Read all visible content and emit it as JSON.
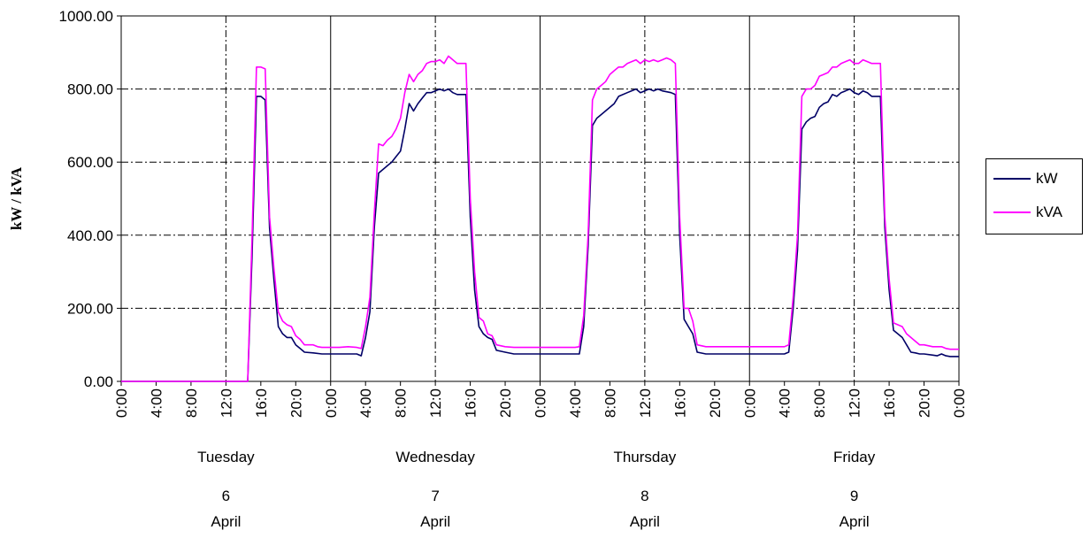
{
  "chart_data": {
    "type": "line",
    "title": "",
    "ylabel": "kW / kVA",
    "ylim": [
      0,
      1000
    ],
    "yticks": [
      "0.00",
      "200.00",
      "400.00",
      "600.00",
      "800.00",
      "1000.00"
    ],
    "xlim": [
      0,
      96
    ],
    "x_tick_labels": [
      "0:00",
      "4:00",
      "8:00",
      "12:0",
      "16:0",
      "20:0",
      "0:00",
      "4:00",
      "8:00",
      "12:0",
      "16:0",
      "20:0",
      "0:00",
      "4:00",
      "8:00",
      "12:0",
      "16:0",
      "20:0",
      "0:00",
      "4:00",
      "8:00",
      "12:0",
      "16:0",
      "20:0",
      "0:00"
    ],
    "days": [
      {
        "name": "Tuesday",
        "day": "6",
        "month": "April"
      },
      {
        "name": "Wednesday",
        "day": "7",
        "month": "April"
      },
      {
        "name": "Thursday",
        "day": "8",
        "month": "April"
      },
      {
        "name": "Friday",
        "day": "9",
        "month": "April"
      }
    ],
    "grid": true,
    "legend_position": "right",
    "series": [
      {
        "name": "kW",
        "color": "#000066",
        "points": [
          [
            0,
            0
          ],
          [
            14,
            0
          ],
          [
            14.5,
            0
          ],
          [
            15,
            350
          ],
          [
            15.5,
            780
          ],
          [
            16,
            780
          ],
          [
            16.5,
            770
          ],
          [
            17,
            420
          ],
          [
            17.5,
            280
          ],
          [
            18,
            150
          ],
          [
            18.5,
            130
          ],
          [
            19,
            120
          ],
          [
            19.5,
            120
          ],
          [
            20,
            100
          ],
          [
            20.5,
            90
          ],
          [
            21,
            80
          ],
          [
            22,
            78
          ],
          [
            23,
            75
          ],
          [
            24,
            75
          ],
          [
            26,
            75
          ],
          [
            27,
            75
          ],
          [
            27.5,
            70
          ],
          [
            28,
            120
          ],
          [
            28.5,
            190
          ],
          [
            29,
            420
          ],
          [
            29.5,
            570
          ],
          [
            30,
            580
          ],
          [
            30.5,
            590
          ],
          [
            31,
            600
          ],
          [
            31.5,
            615
          ],
          [
            32,
            630
          ],
          [
            32.5,
            690
          ],
          [
            33,
            760
          ],
          [
            33.5,
            740
          ],
          [
            34,
            760
          ],
          [
            34.5,
            775
          ],
          [
            35,
            790
          ],
          [
            35.5,
            790
          ],
          [
            36,
            795
          ],
          [
            36.5,
            800
          ],
          [
            37,
            795
          ],
          [
            37.5,
            800
          ],
          [
            38,
            790
          ],
          [
            38.5,
            785
          ],
          [
            39,
            785
          ],
          [
            39.5,
            785
          ],
          [
            40,
            450
          ],
          [
            40.5,
            250
          ],
          [
            41,
            150
          ],
          [
            41.5,
            130
          ],
          [
            42,
            120
          ],
          [
            42.5,
            115
          ],
          [
            43,
            85
          ],
          [
            44,
            80
          ],
          [
            45,
            75
          ],
          [
            48,
            75
          ],
          [
            50,
            75
          ],
          [
            52,
            75
          ],
          [
            52.5,
            75
          ],
          [
            53,
            150
          ],
          [
            53.5,
            370
          ],
          [
            54,
            700
          ],
          [
            54.5,
            720
          ],
          [
            55,
            730
          ],
          [
            55.5,
            740
          ],
          [
            56,
            750
          ],
          [
            56.5,
            760
          ],
          [
            57,
            780
          ],
          [
            58,
            790
          ],
          [
            59,
            800
          ],
          [
            59.5,
            790
          ],
          [
            60,
            795
          ],
          [
            60.5,
            800
          ],
          [
            61,
            795
          ],
          [
            61.5,
            800
          ],
          [
            62,
            795
          ],
          [
            63,
            790
          ],
          [
            63.5,
            785
          ],
          [
            64,
            400
          ],
          [
            64.5,
            170
          ],
          [
            65,
            150
          ],
          [
            65.5,
            130
          ],
          [
            66,
            80
          ],
          [
            67,
            75
          ],
          [
            72,
            75
          ],
          [
            76,
            75
          ],
          [
            76.5,
            80
          ],
          [
            77,
            200
          ],
          [
            77.5,
            360
          ],
          [
            78,
            690
          ],
          [
            78.5,
            710
          ],
          [
            79,
            720
          ],
          [
            79.5,
            725
          ],
          [
            80,
            750
          ],
          [
            80.5,
            760
          ],
          [
            81,
            765
          ],
          [
            81.5,
            785
          ],
          [
            82,
            780
          ],
          [
            82.5,
            790
          ],
          [
            83,
            795
          ],
          [
            83.5,
            800
          ],
          [
            84,
            790
          ],
          [
            84.5,
            785
          ],
          [
            85,
            795
          ],
          [
            85.5,
            790
          ],
          [
            86,
            780
          ],
          [
            86.5,
            780
          ],
          [
            87,
            780
          ],
          [
            87.5,
            420
          ],
          [
            88,
            250
          ],
          [
            88.5,
            140
          ],
          [
            89,
            130
          ],
          [
            89.5,
            120
          ],
          [
            90,
            100
          ],
          [
            90.5,
            80
          ],
          [
            91,
            78
          ],
          [
            91.5,
            75
          ],
          [
            92,
            75
          ],
          [
            93,
            72
          ],
          [
            93.5,
            70
          ],
          [
            94,
            75
          ],
          [
            94.5,
            70
          ],
          [
            95,
            68
          ],
          [
            96,
            68
          ]
        ]
      },
      {
        "name": "kVA",
        "color": "#ff00ff",
        "points": [
          [
            0,
            0
          ],
          [
            14,
            0
          ],
          [
            14.5,
            0
          ],
          [
            15,
            400
          ],
          [
            15.5,
            860
          ],
          [
            16,
            860
          ],
          [
            16.5,
            855
          ],
          [
            17,
            450
          ],
          [
            17.5,
            310
          ],
          [
            18,
            190
          ],
          [
            18.5,
            165
          ],
          [
            19,
            155
          ],
          [
            19.5,
            150
          ],
          [
            20,
            125
          ],
          [
            20.5,
            115
          ],
          [
            21,
            100
          ],
          [
            22,
            100
          ],
          [
            22.5,
            95
          ],
          [
            23,
            93
          ],
          [
            25,
            93
          ],
          [
            26,
            95
          ],
          [
            27,
            93
          ],
          [
            27.5,
            90
          ],
          [
            28,
            150
          ],
          [
            28.5,
            230
          ],
          [
            29,
            460
          ],
          [
            29.5,
            650
          ],
          [
            30,
            645
          ],
          [
            30.5,
            660
          ],
          [
            31,
            670
          ],
          [
            31.5,
            690
          ],
          [
            32,
            720
          ],
          [
            32.5,
            790
          ],
          [
            33,
            840
          ],
          [
            33.5,
            820
          ],
          [
            34,
            840
          ],
          [
            34.5,
            850
          ],
          [
            35,
            870
          ],
          [
            35.5,
            875
          ],
          [
            36,
            875
          ],
          [
            36.5,
            880
          ],
          [
            37,
            870
          ],
          [
            37.5,
            890
          ],
          [
            38,
            880
          ],
          [
            38.5,
            870
          ],
          [
            39,
            870
          ],
          [
            39.5,
            870
          ],
          [
            40,
            500
          ],
          [
            40.5,
            300
          ],
          [
            41,
            175
          ],
          [
            41.5,
            165
          ],
          [
            42,
            130
          ],
          [
            42.5,
            125
          ],
          [
            43,
            100
          ],
          [
            44,
            95
          ],
          [
            45,
            93
          ],
          [
            48,
            93
          ],
          [
            50,
            93
          ],
          [
            52,
            93
          ],
          [
            52.5,
            95
          ],
          [
            53,
            180
          ],
          [
            53.5,
            400
          ],
          [
            54,
            770
          ],
          [
            54.5,
            800
          ],
          [
            55,
            810
          ],
          [
            55.5,
            820
          ],
          [
            56,
            840
          ],
          [
            56.5,
            850
          ],
          [
            57,
            860
          ],
          [
            57.5,
            860
          ],
          [
            58,
            870
          ],
          [
            58.5,
            875
          ],
          [
            59,
            880
          ],
          [
            59.5,
            870
          ],
          [
            60,
            880
          ],
          [
            60.5,
            875
          ],
          [
            61,
            880
          ],
          [
            61.5,
            875
          ],
          [
            62,
            880
          ],
          [
            62.5,
            885
          ],
          [
            63,
            880
          ],
          [
            63.5,
            870
          ],
          [
            64,
            450
          ],
          [
            64.5,
            200
          ],
          [
            65,
            200
          ],
          [
            65.5,
            165
          ],
          [
            66,
            100
          ],
          [
            67,
            95
          ],
          [
            68,
            95
          ],
          [
            69,
            95
          ],
          [
            70,
            95
          ],
          [
            72,
            95
          ],
          [
            74,
            95
          ],
          [
            76,
            95
          ],
          [
            76.5,
            100
          ],
          [
            77,
            230
          ],
          [
            77.5,
            400
          ],
          [
            78,
            780
          ],
          [
            78.5,
            800
          ],
          [
            79,
            800
          ],
          [
            79.5,
            810
          ],
          [
            80,
            835
          ],
          [
            80.5,
            840
          ],
          [
            81,
            845
          ],
          [
            81.5,
            860
          ],
          [
            82,
            860
          ],
          [
            82.5,
            870
          ],
          [
            83,
            875
          ],
          [
            83.5,
            880
          ],
          [
            84,
            870
          ],
          [
            84.5,
            870
          ],
          [
            85,
            880
          ],
          [
            85.5,
            875
          ],
          [
            86,
            870
          ],
          [
            86.5,
            870
          ],
          [
            87,
            870
          ],
          [
            87.5,
            450
          ],
          [
            88,
            280
          ],
          [
            88.5,
            160
          ],
          [
            89,
            155
          ],
          [
            89.5,
            150
          ],
          [
            90,
            130
          ],
          [
            90.5,
            120
          ],
          [
            91,
            110
          ],
          [
            91.5,
            100
          ],
          [
            92,
            100
          ],
          [
            93,
            95
          ],
          [
            93.5,
            95
          ],
          [
            94,
            95
          ],
          [
            94.5,
            90
          ],
          [
            95,
            88
          ],
          [
            96,
            88
          ]
        ]
      }
    ]
  }
}
